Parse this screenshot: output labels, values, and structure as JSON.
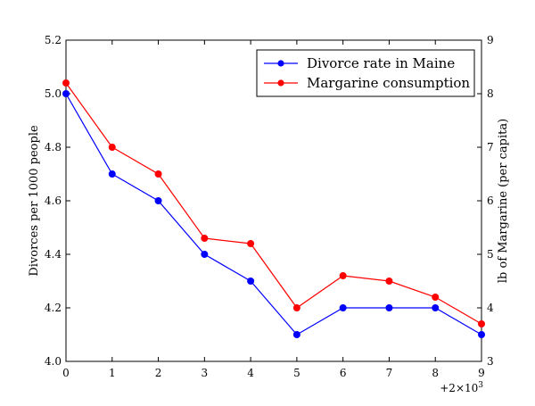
{
  "chart_data": {
    "type": "line",
    "x": [
      0,
      1,
      2,
      3,
      4,
      5,
      6,
      7,
      8,
      9
    ],
    "x_offset_label": "+2×10",
    "x_offset_exponent": "3",
    "xlim": [
      0,
      9
    ],
    "y_left": {
      "label": "Divorces per 1000 people",
      "lim": [
        4.0,
        5.2
      ],
      "ticks": [
        "4.0",
        "4.2",
        "4.4",
        "4.6",
        "4.8",
        "5.0",
        "5.2"
      ]
    },
    "y_right": {
      "label": "lb of Margarine (per capita)",
      "lim": [
        3,
        9
      ],
      "ticks": [
        "3",
        "4",
        "5",
        "6",
        "7",
        "8",
        "9"
      ]
    },
    "series": [
      {
        "name": "Divorce rate in Maine",
        "axis": "left",
        "color": "#0000ff",
        "values": [
          5.0,
          4.7,
          4.6,
          4.4,
          4.3,
          4.1,
          4.2,
          4.2,
          4.2,
          4.1
        ]
      },
      {
        "name": "Margarine consumption",
        "axis": "right",
        "color": "#ff0000",
        "values": [
          8.2,
          7.0,
          6.5,
          5.3,
          5.2,
          4.0,
          4.6,
          4.5,
          4.2,
          3.7
        ]
      }
    ],
    "legend_position": "top-right",
    "grid": false
  }
}
